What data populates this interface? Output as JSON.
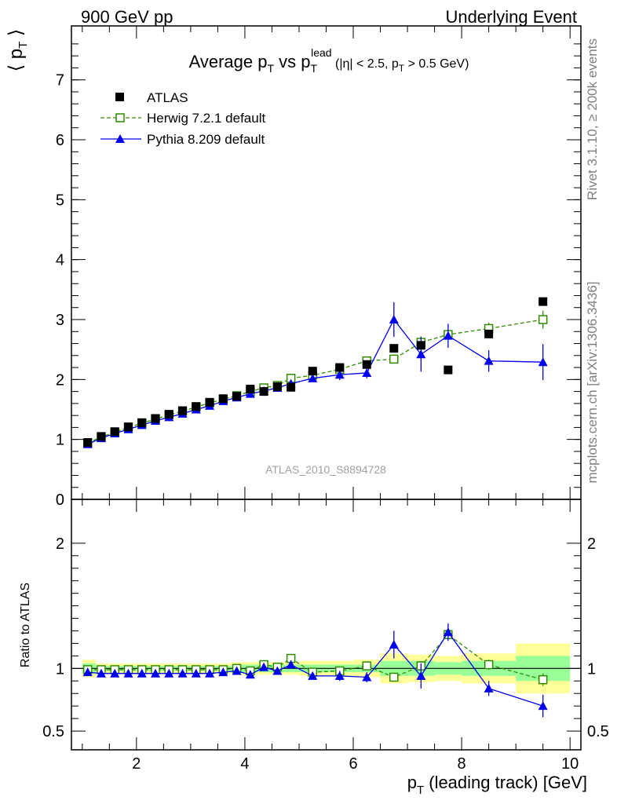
{
  "header": {
    "left": "900 GeV pp",
    "right": "Underlying Event"
  },
  "side_text": {
    "rivet": "Rivet 3.1.10, ≥ 200k events",
    "mcplots": "mcplots.cern.ch [arXiv:1306.3436]"
  },
  "watermark": "ATLAS_2010_S8894728",
  "colors": {
    "atlas": "#000000",
    "herwig": "#2e8b00",
    "pythia": "#0000ee",
    "band_outer": "#ffff99",
    "band_inner": "#99ff99"
  },
  "chart_data": [
    {
      "type": "scatter",
      "title": {
        "main": "Average p",
        "main_sub": "T",
        "mid": " vs p",
        "lead_sub": "T",
        "lead_sup": "lead",
        "cuts_a": " (|η| < 2.5, p",
        "cuts_sub": "T",
        "cuts_b": " > 0.5 GeV)"
      },
      "ylabel": {
        "open": "⟨ p",
        "sub": "T",
        "close": " ⟩"
      },
      "xlim": [
        0.8,
        10.2
      ],
      "ylim": [
        0,
        7.9
      ],
      "yticks": [
        0,
        1,
        2,
        3,
        4,
        5,
        6,
        7
      ],
      "ytick_labels": [
        "0",
        "1",
        "2",
        "3",
        "4",
        "5",
        "6",
        "7"
      ],
      "legend": {
        "placement": "top-left",
        "entries": [
          "ATLAS",
          "Herwig 7.2.1 default",
          "Pythia 8.209 default"
        ]
      },
      "series": [
        {
          "name": "ATLAS",
          "marker": "filled-square",
          "x": [
            1.1,
            1.35,
            1.6,
            1.85,
            2.1,
            2.35,
            2.6,
            2.85,
            3.1,
            3.35,
            3.6,
            3.85,
            4.1,
            4.35,
            4.6,
            4.85,
            5.25,
            5.75,
            6.25,
            6.75,
            7.25,
            7.75,
            8.5,
            9.5
          ],
          "y": [
            0.95,
            1.05,
            1.13,
            1.21,
            1.28,
            1.35,
            1.42,
            1.48,
            1.55,
            1.62,
            1.68,
            1.72,
            1.84,
            1.8,
            1.88,
            1.87,
            2.14,
            2.2,
            2.25,
            2.52,
            2.57,
            2.16,
            2.76,
            3.3
          ]
        },
        {
          "name": "Herwig 7.2.1 default",
          "marker": "open-square",
          "line": "dashed",
          "x": [
            1.1,
            1.35,
            1.6,
            1.85,
            2.1,
            2.35,
            2.6,
            2.85,
            3.1,
            3.35,
            3.6,
            3.85,
            4.1,
            4.35,
            4.6,
            4.85,
            5.25,
            5.75,
            6.25,
            6.75,
            7.25,
            7.75,
            8.5,
            9.5
          ],
          "y": [
            0.94,
            1.04,
            1.12,
            1.2,
            1.27,
            1.34,
            1.41,
            1.47,
            1.54,
            1.61,
            1.67,
            1.73,
            1.8,
            1.86,
            1.9,
            2.02,
            2.07,
            2.17,
            2.31,
            2.34,
            2.62,
            2.75,
            2.85,
            3.0
          ],
          "err": [
            0.02,
            0.02,
            0.02,
            0.02,
            0.02,
            0.02,
            0.02,
            0.02,
            0.02,
            0.02,
            0.02,
            0.02,
            0.02,
            0.02,
            0.03,
            0.04,
            0.04,
            0.05,
            0.06,
            0.07,
            0.1,
            0.09,
            0.1,
            0.15
          ]
        },
        {
          "name": "Pythia 8.209 default",
          "marker": "filled-triangle",
          "line": "solid",
          "x": [
            1.1,
            1.35,
            1.6,
            1.85,
            2.1,
            2.35,
            2.6,
            2.85,
            3.1,
            3.35,
            3.6,
            3.85,
            4.1,
            4.35,
            4.6,
            4.85,
            5.25,
            5.75,
            6.25,
            6.75,
            7.25,
            7.75,
            8.5,
            9.5
          ],
          "y": [
            0.92,
            1.02,
            1.1,
            1.17,
            1.24,
            1.31,
            1.37,
            1.43,
            1.5,
            1.56,
            1.64,
            1.7,
            1.76,
            1.81,
            1.86,
            1.93,
            2.02,
            2.08,
            2.11,
            3.0,
            2.42,
            2.73,
            2.31,
            2.29
          ],
          "err": [
            0.02,
            0.02,
            0.02,
            0.02,
            0.02,
            0.02,
            0.02,
            0.02,
            0.02,
            0.02,
            0.02,
            0.02,
            0.02,
            0.02,
            0.04,
            0.05,
            0.06,
            0.09,
            0.09,
            0.29,
            0.29,
            0.2,
            0.18,
            0.3
          ]
        }
      ]
    },
    {
      "type": "scatter",
      "ylabel": "Ratio to ATLAS",
      "xlabel": {
        "p": "p",
        "sub": "T",
        "rest": " (leading track) [GeV]"
      },
      "xlim": [
        0.8,
        10.2
      ],
      "ylim": [
        0.35,
        2.35
      ],
      "xticks": [
        2,
        4,
        6,
        8,
        10
      ],
      "xtick_labels": [
        "2",
        "4",
        "6",
        "8",
        "10"
      ],
      "yticks": [
        0.5,
        1,
        2
      ],
      "ytick_labels": [
        "0.5",
        "1",
        "2"
      ],
      "reference_line": 1,
      "bands": {
        "xlo": [
          1.0,
          1.25,
          1.5,
          1.75,
          2.0,
          2.25,
          2.5,
          2.75,
          3.0,
          3.25,
          3.5,
          3.75,
          4.0,
          4.25,
          4.5,
          4.75,
          5.0,
          5.5,
          6.0,
          6.5,
          7.0,
          7.5,
          8.0,
          9.0
        ],
        "xhi": [
          1.25,
          1.5,
          1.75,
          2.0,
          2.25,
          2.5,
          2.75,
          3.0,
          3.25,
          3.5,
          3.75,
          4.0,
          4.25,
          4.5,
          4.75,
          5.0,
          5.5,
          6.0,
          6.5,
          7.0,
          7.5,
          8.0,
          9.0,
          10.0
        ],
        "inner": [
          0.04,
          0.02,
          0.02,
          0.02,
          0.02,
          0.02,
          0.02,
          0.02,
          0.02,
          0.02,
          0.02,
          0.03,
          0.03,
          0.03,
          0.03,
          0.03,
          0.03,
          0.03,
          0.03,
          0.06,
          0.06,
          0.05,
          0.06,
          0.1
        ],
        "outer": [
          0.07,
          0.04,
          0.04,
          0.04,
          0.04,
          0.04,
          0.04,
          0.04,
          0.04,
          0.04,
          0.04,
          0.05,
          0.05,
          0.05,
          0.05,
          0.05,
          0.06,
          0.06,
          0.07,
          0.12,
          0.11,
          0.1,
          0.12,
          0.2
        ]
      },
      "series": [
        {
          "name": "Herwig 7.2.1 default",
          "marker": "open-square",
          "line": "dashed",
          "x": [
            1.1,
            1.35,
            1.6,
            1.85,
            2.1,
            2.35,
            2.6,
            2.85,
            3.1,
            3.35,
            3.6,
            3.85,
            4.1,
            4.35,
            4.6,
            4.85,
            5.25,
            5.75,
            6.25,
            6.75,
            7.25,
            7.75,
            8.5,
            9.5
          ],
          "y": [
            0.99,
            0.99,
            0.99,
            0.99,
            0.99,
            0.99,
            0.99,
            0.99,
            0.99,
            0.99,
            0.99,
            1.0,
            0.98,
            1.03,
            1.01,
            1.08,
            0.97,
            0.98,
            1.02,
            0.93,
            1.02,
            1.27,
            1.03,
            0.91
          ],
          "err": [
            0.01,
            0.01,
            0.01,
            0.01,
            0.01,
            0.01,
            0.01,
            0.01,
            0.01,
            0.01,
            0.01,
            0.01,
            0.01,
            0.01,
            0.02,
            0.02,
            0.02,
            0.02,
            0.03,
            0.03,
            0.04,
            0.04,
            0.04,
            0.05
          ]
        },
        {
          "name": "Pythia 8.209 default",
          "marker": "filled-triangle",
          "line": "solid",
          "x": [
            1.1,
            1.35,
            1.6,
            1.85,
            2.1,
            2.35,
            2.6,
            2.85,
            3.1,
            3.35,
            3.6,
            3.85,
            4.1,
            4.35,
            4.6,
            4.85,
            5.25,
            5.75,
            6.25,
            6.75,
            7.25,
            7.75,
            8.5,
            9.5
          ],
          "y": [
            0.97,
            0.96,
            0.96,
            0.96,
            0.96,
            0.96,
            0.96,
            0.96,
            0.96,
            0.96,
            0.97,
            0.98,
            0.95,
            1.01,
            0.98,
            1.03,
            0.94,
            0.94,
            0.93,
            1.19,
            0.94,
            1.29,
            0.84,
            0.7
          ],
          "err": [
            0.01,
            0.01,
            0.01,
            0.01,
            0.01,
            0.01,
            0.01,
            0.01,
            0.01,
            0.01,
            0.01,
            0.01,
            0.02,
            0.02,
            0.02,
            0.03,
            0.03,
            0.04,
            0.04,
            0.11,
            0.1,
            0.07,
            0.06,
            0.09
          ]
        }
      ]
    }
  ]
}
